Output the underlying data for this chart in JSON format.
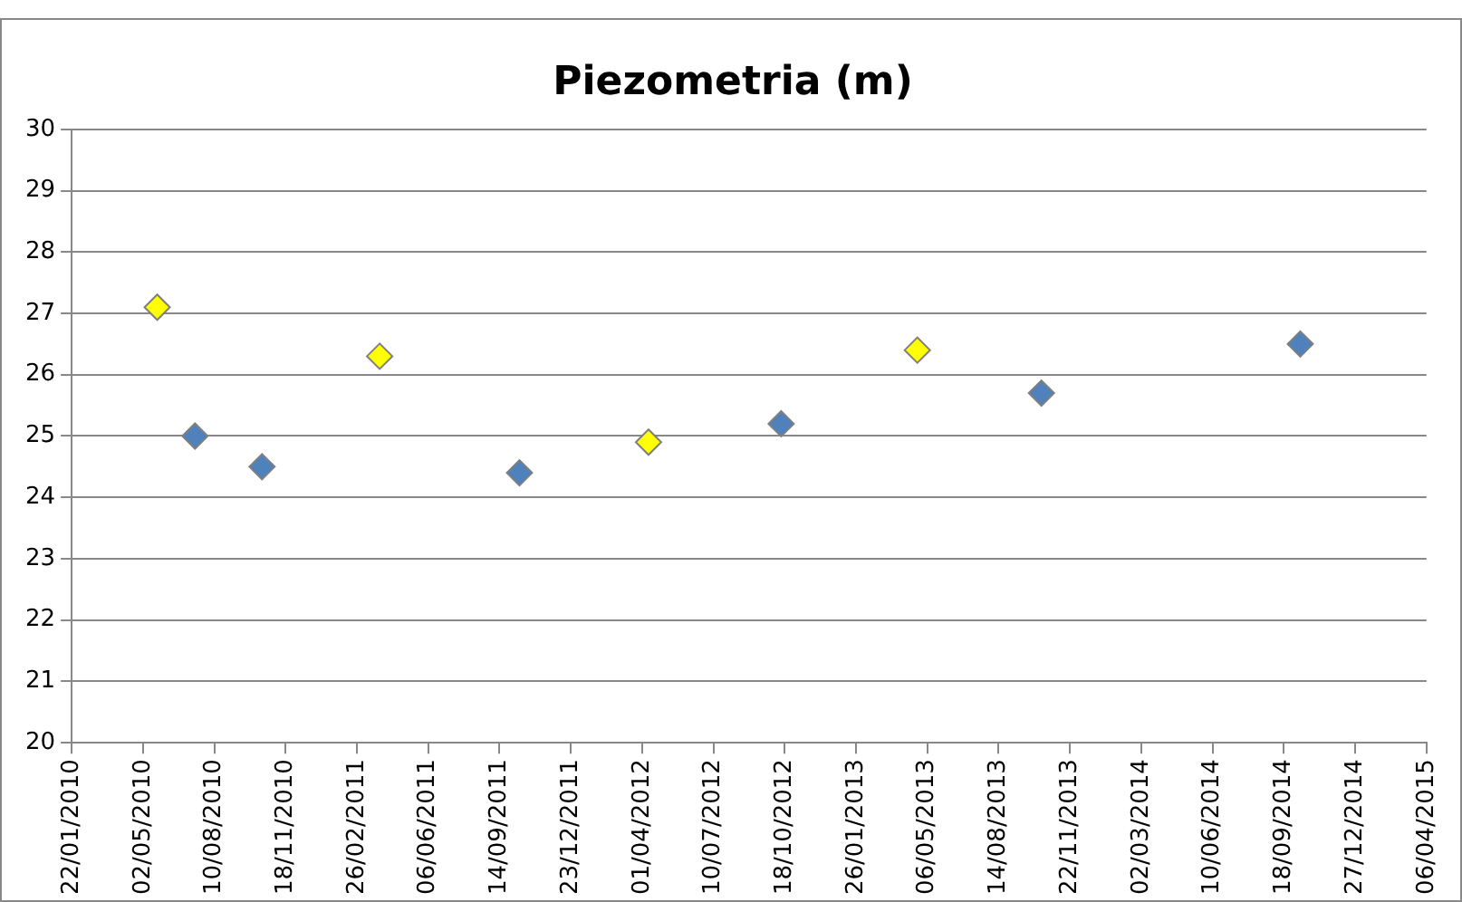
{
  "chart_data": {
    "type": "scatter",
    "title": "Piezometria (m)",
    "marker": "diamond",
    "grid": "y",
    "series": [
      {
        "color": "#ffff00",
        "x": [
          "2010-05-22",
          "2011-03-30",
          "2012-04-10",
          "2013-04-22"
        ],
        "values": [
          27.1,
          26.3,
          24.9,
          26.4
        ]
      },
      {
        "color": "#4f81bd",
        "x": [
          "2010-07-14",
          "2010-10-16",
          "2011-10-12",
          "2012-10-13",
          "2013-10-13",
          "2014-10-11"
        ],
        "values": [
          25.0,
          24.5,
          24.4,
          25.2,
          25.7,
          26.5
        ]
      }
    ],
    "xlim": [
      "2010-01-22",
      "2015-04-06"
    ],
    "xticks": [
      {
        "value": "2010-01-22",
        "label": "22/01/2010"
      },
      {
        "value": "2010-05-02",
        "label": "02/05/2010"
      },
      {
        "value": "2010-08-10",
        "label": "10/08/2010"
      },
      {
        "value": "2010-11-18",
        "label": "18/11/2010"
      },
      {
        "value": "2011-02-26",
        "label": "26/02/2011"
      },
      {
        "value": "2011-06-06",
        "label": "06/06/2011"
      },
      {
        "value": "2011-09-14",
        "label": "14/09/2011"
      },
      {
        "value": "2011-12-23",
        "label": "23/12/2011"
      },
      {
        "value": "2012-04-01",
        "label": "01/04/2012"
      },
      {
        "value": "2012-07-10",
        "label": "10/07/2012"
      },
      {
        "value": "2012-10-18",
        "label": "18/10/2012"
      },
      {
        "value": "2013-01-26",
        "label": "26/01/2013"
      },
      {
        "value": "2013-05-06",
        "label": "06/05/2013"
      },
      {
        "value": "2013-08-14",
        "label": "14/08/2013"
      },
      {
        "value": "2013-11-22",
        "label": "22/11/2013"
      },
      {
        "value": "2014-03-02",
        "label": "02/03/2014"
      },
      {
        "value": "2014-06-10",
        "label": "10/06/2014"
      },
      {
        "value": "2014-09-18",
        "label": "18/09/2014"
      },
      {
        "value": "2014-12-27",
        "label": "27/12/2014"
      },
      {
        "value": "2015-04-06",
        "label": "06/04/2015"
      }
    ],
    "ylim": [
      20,
      30
    ],
    "yticks": [
      20,
      21,
      22,
      23,
      24,
      25,
      26,
      27,
      28,
      29,
      30
    ]
  }
}
